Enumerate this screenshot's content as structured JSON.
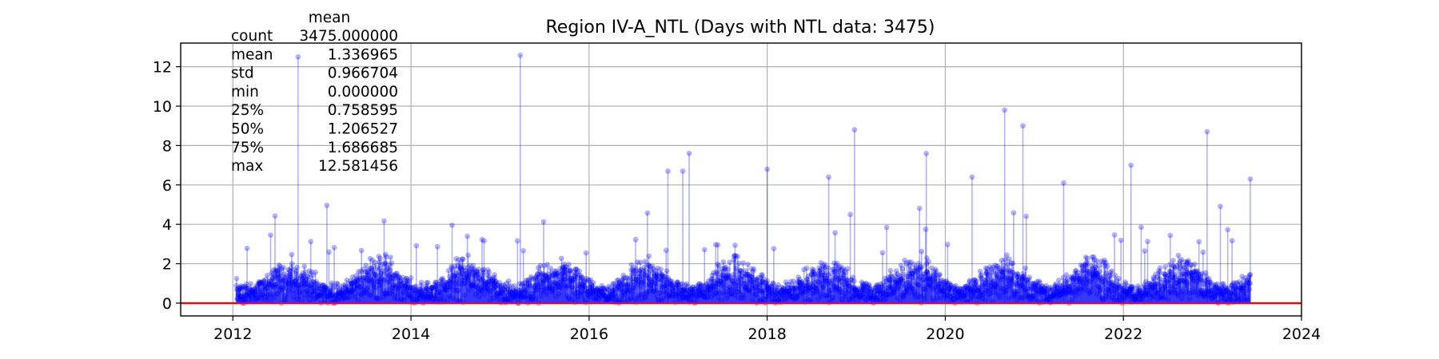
{
  "chart_data": {
    "type": "scatter",
    "title": "Region IV-A_NTL (Days with NTL data: 3475)",
    "xlabel": "",
    "ylabel": "",
    "x_ticks": [
      "2012",
      "2014",
      "2016",
      "2018",
      "2020",
      "2022",
      "2024"
    ],
    "y_ticks": [
      "0",
      "2",
      "4",
      "6",
      "8",
      "10",
      "12"
    ],
    "xlim": [
      "2011-06-01",
      "2024-01-01"
    ],
    "ylim": [
      -0.65,
      13.2
    ],
    "grid": true,
    "colors": {
      "points": "#0000ff",
      "stems": "#0000ff",
      "baseline": "#ff0000",
      "grid": "#b0b0b0"
    },
    "baseline_y": 0,
    "series": [
      {
        "style": "stem-scatter",
        "count": 3475,
        "date_range": [
          "2012-01-15",
          "2023-06-05"
        ],
        "typical_range": [
          0.0,
          3.0
        ],
        "peaks": [
          {
            "x": "2012-09-25",
            "y": 12.5
          },
          {
            "x": "2015-03-25",
            "y": 12.58
          },
          {
            "x": "2016-11-20",
            "y": 6.7
          },
          {
            "x": "2017-01-20",
            "y": 6.7
          },
          {
            "x": "2017-02-15",
            "y": 7.6
          },
          {
            "x": "2018-01-01",
            "y": 6.8
          },
          {
            "x": "2018-09-10",
            "y": 6.4
          },
          {
            "x": "2018-12-25",
            "y": 8.8
          },
          {
            "x": "2019-10-15",
            "y": 7.6
          },
          {
            "x": "2020-04-20",
            "y": 6.4
          },
          {
            "x": "2020-09-01",
            "y": 9.8
          },
          {
            "x": "2020-11-15",
            "y": 9.0
          },
          {
            "x": "2021-05-01",
            "y": 6.1
          },
          {
            "x": "2022-02-01",
            "y": 7.0
          },
          {
            "x": "2022-12-10",
            "y": 8.7
          },
          {
            "x": "2023-06-05",
            "y": 6.3
          }
        ]
      }
    ],
    "stats_table": {
      "header": "mean",
      "rows": [
        {
          "label": "count",
          "value": "3475.000000"
        },
        {
          "label": "mean",
          "value": "1.336965"
        },
        {
          "label": "std",
          "value": "0.966704"
        },
        {
          "label": "min",
          "value": "0.000000"
        },
        {
          "label": "25%",
          "value": "0.758595"
        },
        {
          "label": "50%",
          "value": "1.206527"
        },
        {
          "label": "75%",
          "value": "1.686685"
        },
        {
          "label": "max",
          "value": "12.581456"
        }
      ]
    }
  }
}
